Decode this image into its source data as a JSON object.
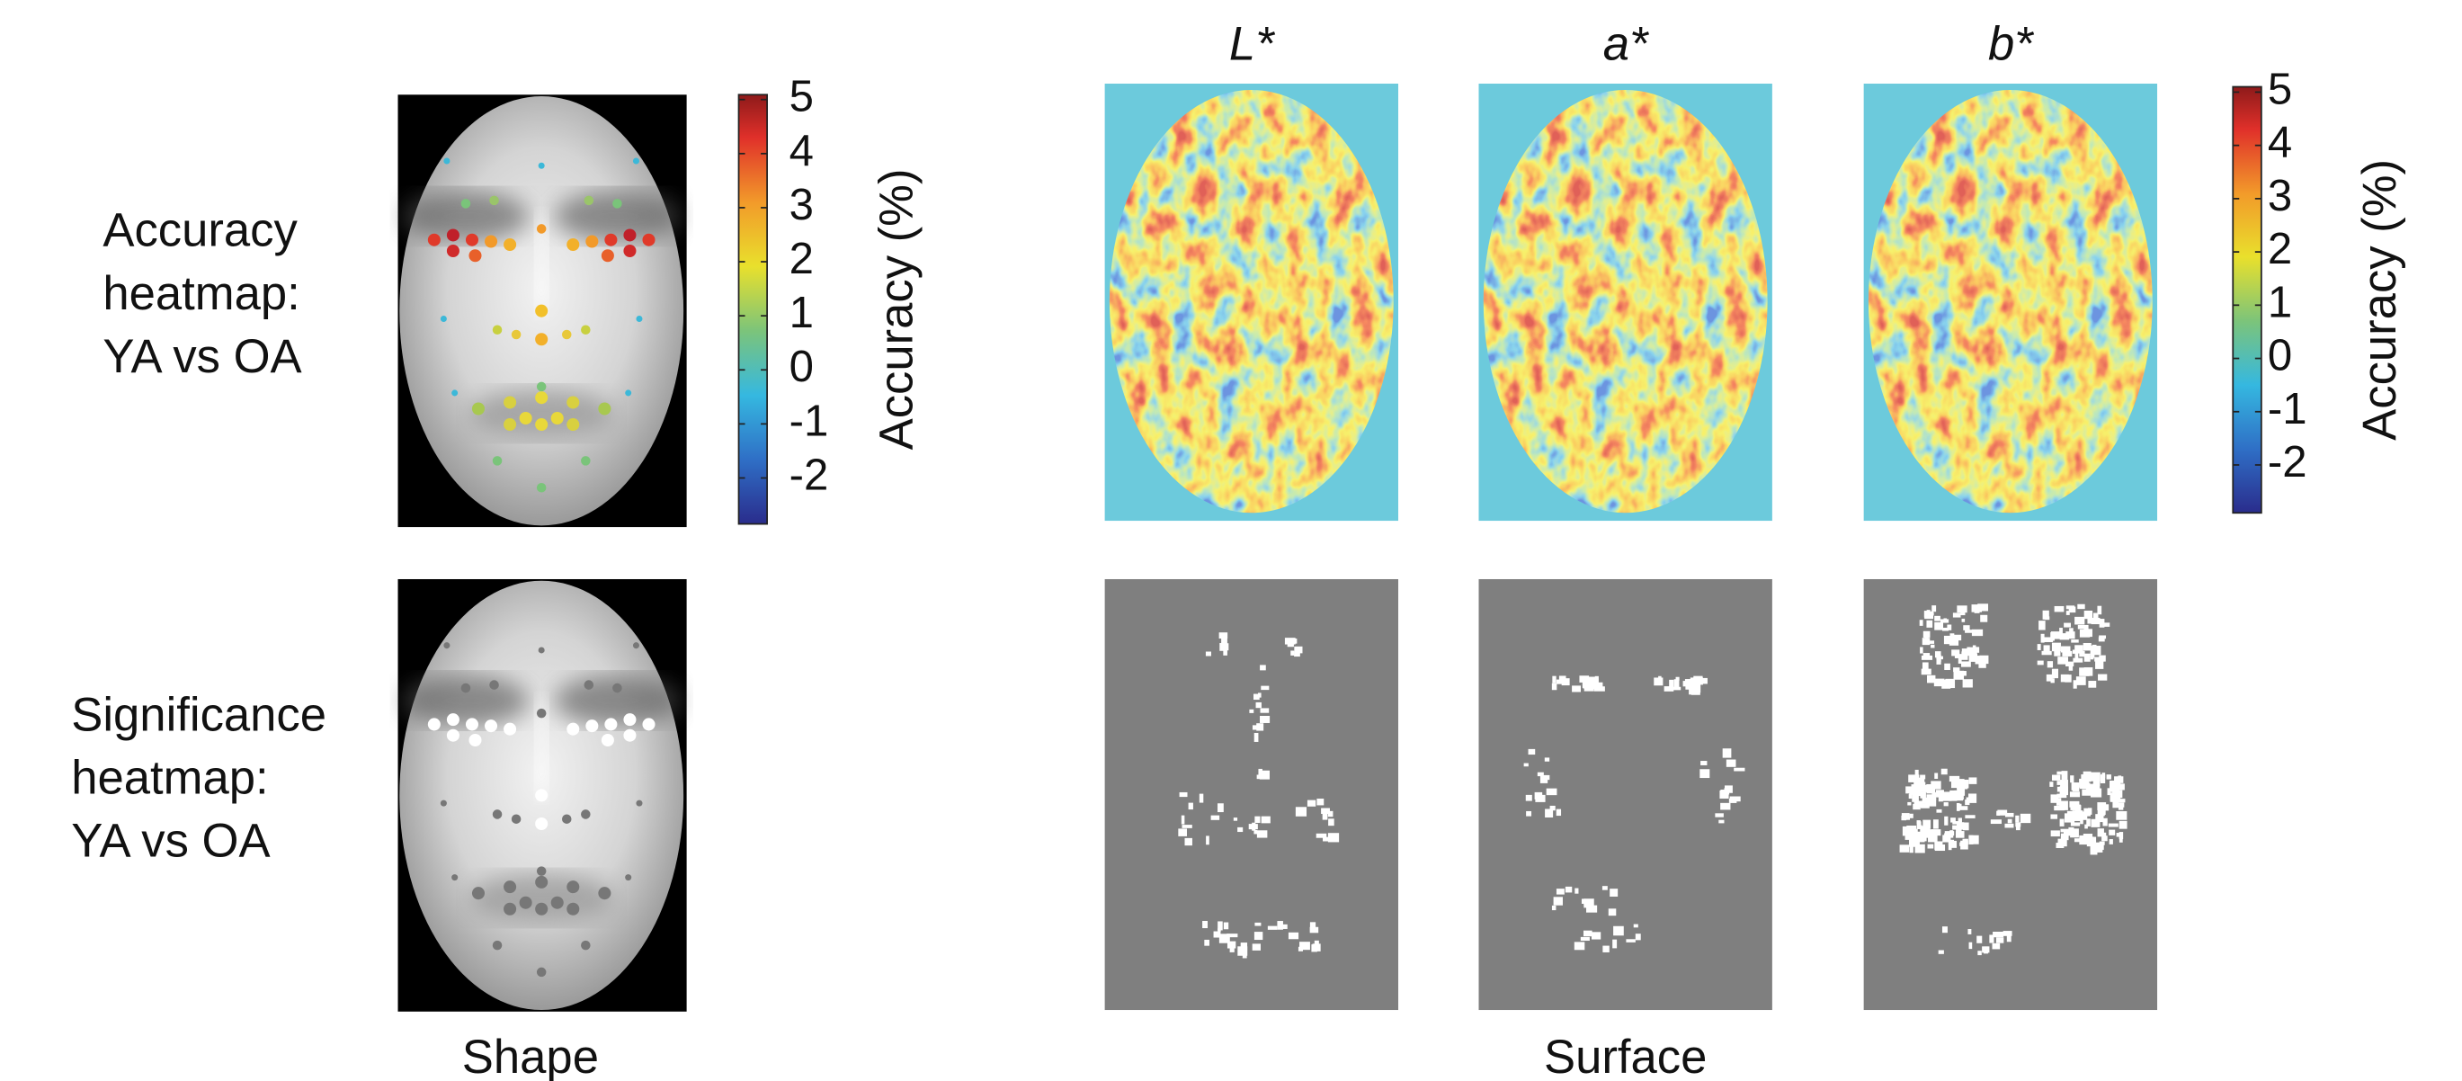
{
  "row_labels": [
    [
      "Accuracy",
      "heatmap:",
      "YA vs OA"
    ],
    [
      "Significance",
      "heatmap:",
      "YA vs OA"
    ]
  ],
  "panel_titles": [
    "L*",
    "a*",
    "b*"
  ],
  "colorbars": [
    {
      "label": "Accuracy (%)",
      "lim": [
        -2.85,
        5.09
      ],
      "ticks": [
        5,
        4,
        3,
        2,
        1,
        0,
        -1,
        -2
      ]
    },
    {
      "label": "Accuracy (%)",
      "lim": [
        -2.9,
        5.1
      ],
      "ticks": [
        5,
        4,
        3,
        2,
        1,
        0,
        -1,
        -2
      ]
    }
  ],
  "footer_labels": [
    "Shape",
    "Surface"
  ]
}
